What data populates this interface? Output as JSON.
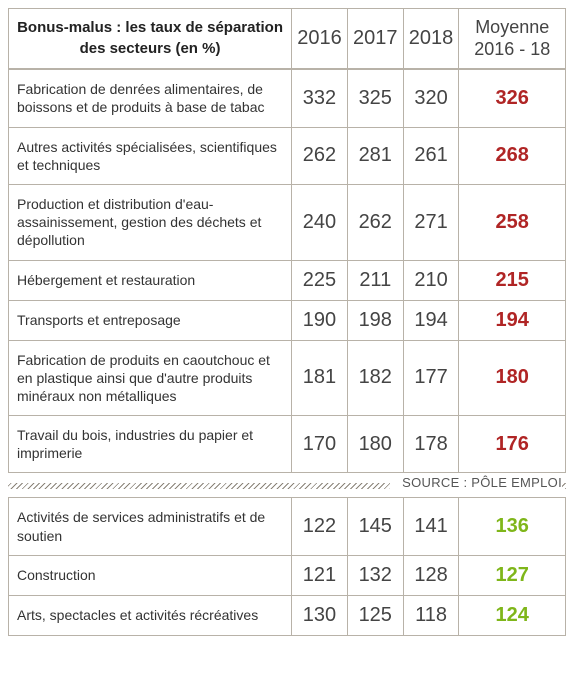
{
  "title": "Bonus-malus : les taux de séparation des secteurs (en %)",
  "years": [
    "2016",
    "2017",
    "2018"
  ],
  "avg_header_l1": "Moyenne",
  "avg_header_l2": "2016 - 18",
  "source": "SOURCE : PÔLE EMPLOI",
  "colors": {
    "border": "#b8b2a8",
    "value_text": "#444444",
    "avg_red": "#b02525",
    "avg_green": "#7fb61a",
    "hatch": "#8a8378"
  },
  "top_rows": [
    {
      "sector": "Fabrication de denrées alimentaires, de boissons et de produits à base de tabac",
      "v": [
        "332",
        "325",
        "320"
      ],
      "avg": "326"
    },
    {
      "sector": "Autres activités spécialisées, scientifiques et techniques",
      "v": [
        "262",
        "281",
        "261"
      ],
      "avg": "268"
    },
    {
      "sector": "Production et distribution d'eau-assainissement, gestion des déchets et dépollution",
      "v": [
        "240",
        "262",
        "271"
      ],
      "avg": "258"
    },
    {
      "sector": "Hébergement et restauration",
      "v": [
        "225",
        "211",
        "210"
      ],
      "avg": "215"
    },
    {
      "sector": "Transports et entreposage",
      "v": [
        "190",
        "198",
        "194"
      ],
      "avg": "194"
    },
    {
      "sector": "Fabrication de produits en caoutchouc et en plastique ainsi que d'autre produits minéraux non métalliques",
      "v": [
        "181",
        "182",
        "177"
      ],
      "avg": "180"
    },
    {
      "sector": "Travail du bois, industries du papier et imprimerie",
      "v": [
        "170",
        "180",
        "178"
      ],
      "avg": "176"
    }
  ],
  "bottom_rows": [
    {
      "sector": "Activités de services administratifs et de soutien",
      "v": [
        "122",
        "145",
        "141"
      ],
      "avg": "136"
    },
    {
      "sector": "Construction",
      "v": [
        "121",
        "132",
        "128"
      ],
      "avg": "127"
    },
    {
      "sector": "Arts, spectacles et activités récréatives",
      "v": [
        "130",
        "125",
        "118"
      ],
      "avg": "124"
    }
  ]
}
